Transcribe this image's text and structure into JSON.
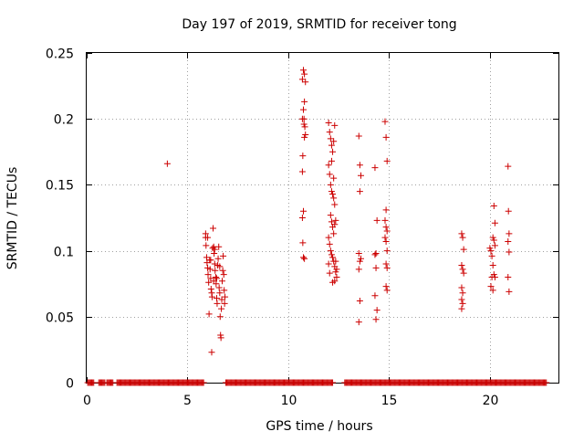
{
  "chart_data": {
    "type": "scatter",
    "title": "Day 197 of 2019, SRMTID for receiver tong",
    "xlabel": "GPS time / hours",
    "ylabel": "SRMTID / TECUs",
    "xlim": [
      0,
      23.4
    ],
    "ylim": [
      0,
      0.25
    ],
    "x_ticks": [
      0,
      5,
      10,
      15,
      20
    ],
    "x_tick_labels": [
      "0",
      "5",
      "10",
      "15",
      "20"
    ],
    "y_ticks": [
      0,
      0.05,
      0.1,
      0.15,
      0.2,
      0.25
    ],
    "y_tick_labels": [
      "0",
      "0.05",
      "0.1",
      "0.15",
      "0.2",
      "0.25"
    ],
    "grid": true,
    "marker": "+",
    "color": "#cc0000",
    "zero_segments": [
      [
        0.05,
        0.35
      ],
      [
        0.6,
        0.9
      ],
      [
        1.0,
        1.3
      ],
      [
        1.5,
        5.8
      ],
      [
        6.9,
        12.2
      ],
      [
        12.8,
        22.8
      ]
    ],
    "zero_step_hours": 0.05,
    "points": [
      [
        4.0,
        0.166
      ],
      [
        5.9,
        0.113
      ],
      [
        5.9,
        0.11
      ],
      [
        5.92,
        0.104
      ],
      [
        5.95,
        0.095
      ],
      [
        5.97,
        0.091
      ],
      [
        6.0,
        0.087
      ],
      [
        6.02,
        0.082
      ],
      [
        6.05,
        0.076
      ],
      [
        6.07,
        0.052
      ],
      [
        6.1,
        0.093
      ],
      [
        6.12,
        0.086
      ],
      [
        6.15,
        0.079
      ],
      [
        6.17,
        0.071
      ],
      [
        6.2,
        0.068
      ],
      [
        6.22,
        0.065
      ],
      [
        6.25,
        0.102
      ],
      [
        6.27,
        0.117
      ],
      [
        6.3,
        0.103
      ],
      [
        6.2,
        0.023
      ],
      [
        6.32,
        0.098
      ],
      [
        6.35,
        0.09
      ],
      [
        6.37,
        0.085
      ],
      [
        6.4,
        0.08
      ],
      [
        6.42,
        0.075
      ],
      [
        6.45,
        0.064
      ],
      [
        6.47,
        0.06
      ],
      [
        6.5,
        0.089
      ],
      [
        6.52,
        0.094
      ],
      [
        6.55,
        0.103
      ],
      [
        6.57,
        0.072
      ],
      [
        6.6,
        0.068
      ],
      [
        6.62,
        0.05
      ],
      [
        6.64,
        0.036
      ],
      [
        6.66,
        0.034
      ],
      [
        6.68,
        0.056
      ],
      [
        6.7,
        0.063
      ],
      [
        6.72,
        0.077
      ],
      [
        6.75,
        0.085
      ],
      [
        6.77,
        0.096
      ],
      [
        6.8,
        0.082
      ],
      [
        6.82,
        0.07
      ],
      [
        6.84,
        0.06
      ],
      [
        6.86,
        0.065
      ],
      [
        6.6,
        0.088
      ],
      [
        6.3,
        0.077
      ],
      [
        6.0,
        0.11
      ],
      [
        6.35,
        0.101
      ],
      [
        6.15,
        0.093
      ],
      [
        6.45,
        0.079
      ],
      [
        10.7,
        0.23
      ],
      [
        10.75,
        0.237
      ],
      [
        10.8,
        0.234
      ],
      [
        10.85,
        0.228
      ],
      [
        10.8,
        0.213
      ],
      [
        10.75,
        0.207
      ],
      [
        10.7,
        0.2
      ],
      [
        10.78,
        0.196
      ],
      [
        10.82,
        0.194
      ],
      [
        10.8,
        0.186
      ],
      [
        10.72,
        0.172
      ],
      [
        10.7,
        0.16
      ],
      [
        10.75,
        0.13
      ],
      [
        10.7,
        0.125
      ],
      [
        10.72,
        0.106
      ],
      [
        10.75,
        0.095
      ],
      [
        10.8,
        0.094
      ],
      [
        10.85,
        0.188
      ],
      [
        10.78,
        0.2
      ],
      [
        12.0,
        0.197
      ],
      [
        12.05,
        0.19
      ],
      [
        12.1,
        0.185
      ],
      [
        12.15,
        0.18
      ],
      [
        12.2,
        0.175
      ],
      [
        12.25,
        0.183
      ],
      [
        12.3,
        0.195
      ],
      [
        12.0,
        0.165
      ],
      [
        12.05,
        0.158
      ],
      [
        12.1,
        0.15
      ],
      [
        12.15,
        0.145
      ],
      [
        12.2,
        0.143
      ],
      [
        12.25,
        0.14
      ],
      [
        12.3,
        0.135
      ],
      [
        12.1,
        0.127
      ],
      [
        12.15,
        0.122
      ],
      [
        12.2,
        0.118
      ],
      [
        12.25,
        0.113
      ],
      [
        12.3,
        0.12
      ],
      [
        12.0,
        0.11
      ],
      [
        12.05,
        0.105
      ],
      [
        12.1,
        0.1
      ],
      [
        12.15,
        0.097
      ],
      [
        12.2,
        0.095
      ],
      [
        12.25,
        0.092
      ],
      [
        12.3,
        0.088
      ],
      [
        12.35,
        0.084
      ],
      [
        12.4,
        0.08
      ],
      [
        12.05,
        0.083
      ],
      [
        12.2,
        0.076
      ],
      [
        12.35,
        0.092
      ],
      [
        12.4,
        0.086
      ],
      [
        12.15,
        0.168
      ],
      [
        12.25,
        0.155
      ],
      [
        12.35,
        0.123
      ],
      [
        12.0,
        0.09
      ],
      [
        12.3,
        0.077
      ],
      [
        13.5,
        0.187
      ],
      [
        13.55,
        0.165
      ],
      [
        13.6,
        0.157
      ],
      [
        13.55,
        0.145
      ],
      [
        13.5,
        0.098
      ],
      [
        13.6,
        0.094
      ],
      [
        13.55,
        0.092
      ],
      [
        13.5,
        0.086
      ],
      [
        13.55,
        0.062
      ],
      [
        13.5,
        0.046
      ],
      [
        14.3,
        0.163
      ],
      [
        14.4,
        0.123
      ],
      [
        14.35,
        0.098
      ],
      [
        14.3,
        0.097
      ],
      [
        14.35,
        0.087
      ],
      [
        14.3,
        0.066
      ],
      [
        14.4,
        0.055
      ],
      [
        14.35,
        0.048
      ],
      [
        14.8,
        0.198
      ],
      [
        14.85,
        0.186
      ],
      [
        14.9,
        0.168
      ],
      [
        14.85,
        0.131
      ],
      [
        14.8,
        0.123
      ],
      [
        14.85,
        0.118
      ],
      [
        14.9,
        0.115
      ],
      [
        14.8,
        0.11
      ],
      [
        14.85,
        0.107
      ],
      [
        14.9,
        0.1
      ],
      [
        14.85,
        0.09
      ],
      [
        14.9,
        0.087
      ],
      [
        14.85,
        0.073
      ],
      [
        14.9,
        0.07
      ],
      [
        18.6,
        0.113
      ],
      [
        18.65,
        0.11
      ],
      [
        18.7,
        0.101
      ],
      [
        18.6,
        0.089
      ],
      [
        18.65,
        0.086
      ],
      [
        18.7,
        0.083
      ],
      [
        18.6,
        0.072
      ],
      [
        18.65,
        0.068
      ],
      [
        18.6,
        0.063
      ],
      [
        18.65,
        0.06
      ],
      [
        18.6,
        0.056
      ],
      [
        20.0,
        0.102
      ],
      [
        20.05,
        0.1
      ],
      [
        20.1,
        0.096
      ],
      [
        20.15,
        0.089
      ],
      [
        20.2,
        0.082
      ],
      [
        20.1,
        0.08
      ],
      [
        20.05,
        0.073
      ],
      [
        20.15,
        0.07
      ],
      [
        20.2,
        0.134
      ],
      [
        20.25,
        0.121
      ],
      [
        20.2,
        0.108
      ],
      [
        20.25,
        0.104
      ],
      [
        20.15,
        0.11
      ],
      [
        20.25,
        0.08
      ],
      [
        20.9,
        0.164
      ],
      [
        20.92,
        0.13
      ],
      [
        20.95,
        0.113
      ],
      [
        20.9,
        0.107
      ],
      [
        20.95,
        0.099
      ],
      [
        20.9,
        0.08
      ],
      [
        20.95,
        0.069
      ]
    ]
  }
}
